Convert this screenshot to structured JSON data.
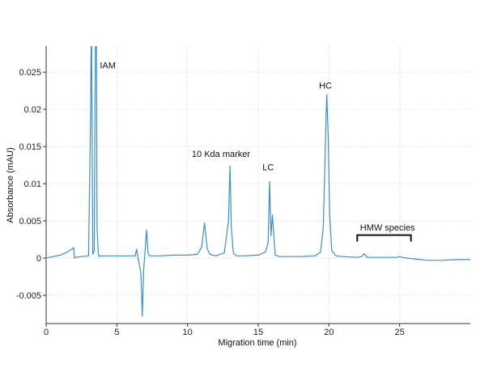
{
  "chart_data": {
    "type": "line",
    "title": "",
    "xlabel": "Migration time (min)",
    "ylabel": "Absorbance (mAU)",
    "xlim": [
      0,
      30
    ],
    "ylim": [
      -0.0088,
      0.0285
    ],
    "xticks": [
      0,
      5,
      10,
      15,
      20,
      25
    ],
    "yticks": [
      -0.005,
      0,
      0.005,
      0.01,
      0.015,
      0.02,
      0.025
    ],
    "xtick_labels": [
      "0",
      "5",
      "10",
      "15",
      "20",
      "25"
    ],
    "ytick_labels": [
      "-0.005",
      "0",
      "0.005",
      "0.01",
      "0.015",
      "0.02",
      "0.025"
    ],
    "grid": true,
    "line_color": "#3a8fc7",
    "series": [
      {
        "name": "",
        "x": [
          0,
          0.5,
          1.0,
          1.5,
          1.95,
          2.0,
          2.05,
          2.5,
          3.0,
          3.15,
          3.2,
          3.3,
          3.4,
          3.5,
          3.55,
          3.6,
          3.7,
          3.75,
          3.8,
          4.0,
          5.0,
          6.0,
          6.3,
          6.4,
          6.5,
          6.6,
          6.7,
          6.8,
          6.9,
          7.0,
          7.1,
          7.2,
          7.3,
          7.5,
          8.0,
          9.0,
          10.0,
          10.7,
          11.0,
          11.2,
          11.4,
          11.6,
          12.0,
          12.6,
          12.9,
          13.0,
          13.1,
          13.25,
          13.5,
          14.0,
          15.0,
          15.5,
          15.7,
          15.8,
          15.9,
          16.0,
          16.2,
          16.5,
          17.0,
          18.0,
          19.0,
          19.4,
          19.6,
          19.8,
          19.85,
          19.95,
          20.05,
          20.2,
          20.5,
          21.0,
          22.0,
          22.3,
          22.5,
          22.7,
          23.0,
          24.0,
          24.8,
          25.0,
          25.2,
          25.5,
          26.0,
          27.0,
          28.0,
          29.0,
          30.0
        ],
        "y": [
          0.0,
          0.0002,
          0.0004,
          0.0008,
          0.0014,
          0.0,
          0.0001,
          0.0002,
          0.0003,
          0.02,
          0.035,
          0.0005,
          0.001,
          0.035,
          0.035,
          0.004,
          0.0005,
          0.0002,
          0.0003,
          0.0003,
          0.0003,
          0.0003,
          0.0003,
          0.0012,
          0.0,
          -0.001,
          -0.002,
          -0.0078,
          -0.0015,
          0.001,
          0.0038,
          0.0008,
          0.0003,
          0.0003,
          0.0003,
          0.0004,
          0.0004,
          0.0005,
          0.0015,
          0.0047,
          0.0012,
          0.0005,
          0.0003,
          0.0007,
          0.005,
          0.0124,
          0.004,
          0.0006,
          0.0003,
          0.0003,
          0.0004,
          0.0008,
          0.002,
          0.0103,
          0.003,
          0.0058,
          0.0004,
          0.0002,
          0.0002,
          0.0002,
          0.0003,
          0.0008,
          0.004,
          0.019,
          0.022,
          0.016,
          0.006,
          0.001,
          0.0003,
          0.0002,
          0.0001,
          0.0002,
          0.0006,
          0.0001,
          0.0001,
          0.0001,
          0.0001,
          0.0002,
          0.0001,
          0.0,
          -0.0001,
          -0.0003,
          -0.0003,
          -0.0002,
          -0.0002
        ]
      }
    ],
    "annotations": [
      {
        "text": "IAM",
        "x": 3.8,
        "y": 0.0255
      },
      {
        "text": "10 Kda marker",
        "x": 10.3,
        "y": 0.0136
      },
      {
        "text": "LC",
        "x": 15.3,
        "y": 0.0118
      },
      {
        "text": "HC",
        "x": 19.3,
        "y": 0.0228
      },
      {
        "text": "HMW species",
        "x": 22.2,
        "y": 0.0037
      }
    ],
    "brackets": [
      {
        "x_start": 22.0,
        "x_end": 25.8,
        "y": 0.0031
      }
    ]
  }
}
